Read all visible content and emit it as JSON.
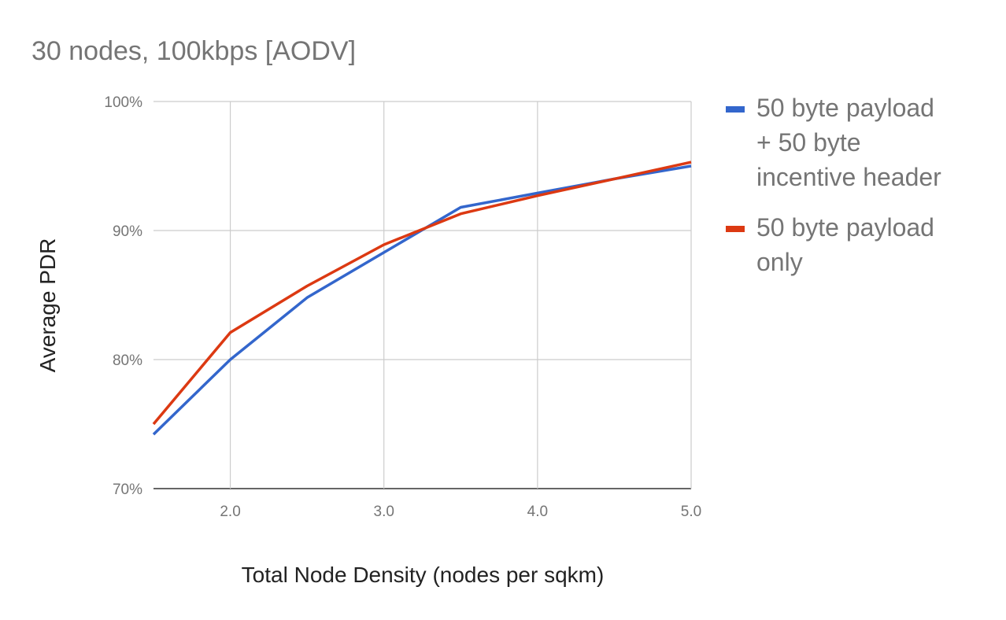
{
  "chart_data": {
    "type": "line",
    "title": "30 nodes, 100kbps [AODV]",
    "xlabel": "Total Node Density (nodes per sqkm)",
    "ylabel": "Average PDR",
    "x": [
      1.5,
      2.0,
      2.5,
      3.0,
      3.5,
      4.0,
      4.5,
      5.0
    ],
    "xlim": [
      1.5,
      5.0
    ],
    "ylim": [
      70,
      100
    ],
    "x_ticks": [
      "2.0",
      "3.0",
      "4.0",
      "5.0"
    ],
    "x_tick_values": [
      2.0,
      3.0,
      4.0,
      5.0
    ],
    "y_ticks": [
      "70%",
      "80%",
      "90%",
      "100%"
    ],
    "y_tick_values": [
      70,
      80,
      90,
      100
    ],
    "grid": true,
    "legend_position": "right",
    "series": [
      {
        "name": "50 byte payload + 50 byte incentive header",
        "legend_lines": [
          "50 byte payload",
          "+ 50 byte",
          "incentive header"
        ],
        "color": "#3366cc",
        "values": [
          74.2,
          80.0,
          84.8,
          88.3,
          91.8,
          92.9,
          94.0,
          95.0
        ]
      },
      {
        "name": "50 byte payload only",
        "legend_lines": [
          "50 byte payload",
          "only"
        ],
        "color": "#dc3912",
        "values": [
          75.0,
          82.1,
          85.7,
          88.9,
          91.3,
          92.7,
          94.0,
          95.3
        ]
      }
    ]
  }
}
